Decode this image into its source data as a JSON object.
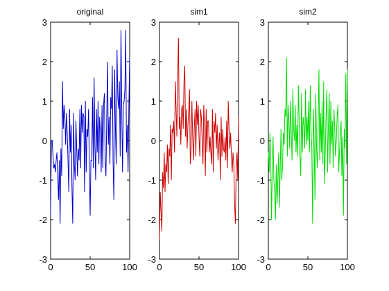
{
  "chart_data": [
    {
      "type": "line",
      "title": "original",
      "xlim": [
        0,
        100
      ],
      "ylim": [
        -3,
        3
      ],
      "xticks": [
        "0",
        "50",
        "100"
      ],
      "yticks": [
        "-3",
        "-2",
        "-1",
        "0",
        "1",
        "2",
        "3"
      ],
      "grid": false,
      "series": [
        {
          "color": "#0000cc",
          "x": [
            0,
            1,
            2,
            3,
            4,
            5,
            6,
            7,
            8,
            9,
            10,
            11,
            12,
            13,
            14,
            15,
            16,
            17,
            18,
            19,
            20,
            21,
            22,
            23,
            24,
            25,
            26,
            27,
            28,
            29,
            30,
            31,
            32,
            33,
            34,
            35,
            36,
            37,
            38,
            39,
            40,
            41,
            42,
            43,
            44,
            45,
            46,
            47,
            48,
            49,
            50,
            51,
            52,
            53,
            54,
            55,
            56,
            57,
            58,
            59,
            60,
            61,
            62,
            63,
            64,
            65,
            66,
            67,
            68,
            69,
            70,
            71,
            72,
            73,
            74,
            75,
            76,
            77,
            78,
            79,
            80,
            81,
            82,
            83,
            84,
            85,
            86,
            87,
            88,
            89,
            90,
            91,
            92,
            93,
            94,
            95,
            96,
            97,
            98,
            99,
            100
          ],
          "y": [
            -1.9,
            0.0,
            0.0,
            -0.4,
            -0.7,
            -0.6,
            -0.8,
            -0.5,
            -0.3,
            -0.9,
            -1.5,
            -0.5,
            -2.1,
            -0.2,
            -0.9,
            1.5,
            0.3,
            0.9,
            0.6,
            -0.1,
            0.7,
            0.2,
            -0.5,
            -1.3,
            0.8,
            -0.3,
            0.4,
            -1.2,
            -2.1,
            0.7,
            -0.6,
            -1.0,
            0.5,
            -0.2,
            -0.9,
            -0.2,
            -0.5,
            0.8,
            -0.7,
            0.9,
            0.2,
            0.7,
            0.6,
            -1.3,
            1.0,
            -0.8,
            0.3,
            0.1,
            0.8,
            -0.7,
            -1.9,
            -0.5,
            -0.5,
            1.1,
            -0.7,
            1.6,
            -0.1,
            -1.0,
            0.8,
            -0.3,
            1.0,
            -0.6,
            0.6,
            0.2,
            -0.8,
            0.9,
            -0.7,
            0.9,
            1.2,
            -0.5,
            -0.9,
            0.6,
            2.0,
            -0.1,
            0.6,
            -0.6,
            1.1,
            0.8,
            1.9,
            -0.5,
            -1.5,
            1.8,
            0.3,
            -0.6,
            2.3,
            1.1,
            0.8,
            1.5,
            -0.4,
            2.8,
            0.8,
            -0.8,
            0.9,
            1.0,
            1.3,
            2.8,
            -0.3,
            0.4,
            -0.8,
            0.9,
            2.1
          ]
        }
      ]
    },
    {
      "type": "line",
      "title": "sim1",
      "xlim": [
        0,
        100
      ],
      "ylim": [
        -3,
        3
      ],
      "xticks": [
        "0",
        "50",
        "100"
      ],
      "yticks": [
        "-3",
        "-2",
        "-1",
        "0",
        "1",
        "2",
        "3"
      ],
      "grid": false,
      "series": [
        {
          "color": "#cc0000",
          "x": [
            0,
            1,
            2,
            3,
            4,
            5,
            6,
            7,
            8,
            9,
            10,
            11,
            12,
            13,
            14,
            15,
            16,
            17,
            18,
            19,
            20,
            21,
            22,
            23,
            24,
            25,
            26,
            27,
            28,
            29,
            30,
            31,
            32,
            33,
            34,
            35,
            36,
            37,
            38,
            39,
            40,
            41,
            42,
            43,
            44,
            45,
            46,
            47,
            48,
            49,
            50,
            51,
            52,
            53,
            54,
            55,
            56,
            57,
            58,
            59,
            60,
            61,
            62,
            63,
            64,
            65,
            66,
            67,
            68,
            69,
            70,
            71,
            72,
            73,
            74,
            75,
            76,
            77,
            78,
            79,
            80,
            81,
            82,
            83,
            84,
            85,
            86,
            87,
            88,
            89,
            90,
            91,
            92,
            93,
            94,
            95,
            96,
            97,
            98,
            99,
            100
          ],
          "y": [
            -2.5,
            -1.3,
            -1.8,
            -2.3,
            -0.8,
            -1.2,
            -0.3,
            -1.3,
            -0.6,
            -0.8,
            -0.1,
            -1.1,
            -0.2,
            -0.4,
            0.4,
            -1.0,
            0.3,
            0.2,
            0.5,
            -0.3,
            1.5,
            0.8,
            0.1,
            1.6,
            2.6,
            0.3,
            0.6,
            -0.1,
            0.8,
            0.9,
            0.3,
            1.5,
            1.9,
            0.1,
            0.8,
            -0.2,
            0.4,
            0.8,
            1.3,
            -0.6,
            -0.2,
            1.0,
            0.1,
            -0.5,
            0.3,
            0.8,
            -0.4,
            1.0,
            0.4,
            0.9,
            0.1,
            -0.4,
            0.8,
            0.6,
            0.0,
            -0.6,
            0.9,
            0.4,
            -0.9,
            0.8,
            -0.3,
            0.5,
            0.5,
            -0.3,
            0.1,
            -0.3,
            -0.6,
            0.8,
            -0.8,
            0.5,
            0.2,
            0.7,
            -0.2,
            0.4,
            -0.5,
            -0.1,
            0.2,
            -1.0,
            0.6,
            -0.4,
            0.3,
            -0.2,
            -0.3,
            0.1,
            -0.5,
            0.5,
            -0.7,
            1.0,
            0.3,
            -0.2,
            0.2,
            -0.4,
            -0.8,
            -0.3,
            -0.6,
            -1.6,
            -2.1,
            -0.7,
            -0.3,
            -1.0,
            0.6
          ]
        }
      ]
    },
    {
      "type": "line",
      "title": "sim2",
      "xlim": [
        0,
        100
      ],
      "ylim": [
        -3,
        3
      ],
      "xticks": [
        "0",
        "50",
        "100"
      ],
      "yticks": [
        "-3",
        "-2",
        "-1",
        "0",
        "1",
        "2",
        "3"
      ],
      "grid": false,
      "series": [
        {
          "color": "#00dd00",
          "x": [
            0,
            1,
            2,
            3,
            4,
            5,
            6,
            7,
            8,
            9,
            10,
            11,
            12,
            13,
            14,
            15,
            16,
            17,
            18,
            19,
            20,
            21,
            22,
            23,
            24,
            25,
            26,
            27,
            28,
            29,
            30,
            31,
            32,
            33,
            34,
            35,
            36,
            37,
            38,
            39,
            40,
            41,
            42,
            43,
            44,
            45,
            46,
            47,
            48,
            49,
            50,
            51,
            52,
            53,
            54,
            55,
            56,
            57,
            58,
            59,
            60,
            61,
            62,
            63,
            64,
            65,
            66,
            67,
            68,
            69,
            70,
            71,
            72,
            73,
            74,
            75,
            76,
            77,
            78,
            79,
            80,
            81,
            82,
            83,
            84,
            85,
            86,
            87,
            88,
            89,
            90,
            91,
            92,
            93,
            94,
            95,
            96,
            97,
            98,
            99,
            100
          ],
          "y": [
            -0.3,
            -0.8,
            0.2,
            -0.5,
            -2.0,
            -0.6,
            0.1,
            -1.0,
            -1.3,
            -2.0,
            -0.6,
            -1.6,
            -1.0,
            -0.3,
            -1.7,
            -0.7,
            0.3,
            -1.0,
            -0.6,
            0.2,
            -0.1,
            0.8,
            0.6,
            2.1,
            -0.4,
            0.9,
            0.5,
            -0.2,
            1.0,
            0.2,
            -0.5,
            1.3,
            0.3,
            0.0,
            0.9,
            -0.3,
            0.4,
            -0.4,
            1.4,
            0.5,
            -0.4,
            -0.9,
            1.2,
            -0.3,
            0.6,
            0.4,
            -0.2,
            1.3,
            -0.1,
            0.6,
            0.0,
            1.0,
            -0.3,
            1.4,
            0.3,
            -0.2,
            -2.1,
            0.8,
            -0.1,
            -1.5,
            1.2,
            -0.2,
            -0.7,
            0.4,
            1.8,
            -0.5,
            0.7,
            -0.3,
            1.0,
            -0.6,
            1.5,
            -1.1,
            -0.3,
            0.6,
            1.3,
            -0.8,
            0.4,
            1.2,
            -0.6,
            1.0,
            -0.1,
            0.5,
            -0.7,
            0.8,
            0.3,
            -0.4,
            0.0,
            0.6,
            0.9,
            -0.8,
            -0.3,
            0.2,
            0.5,
            -0.9,
            0.1,
            -1.9,
            0.3,
            -0.2,
            1.7,
            -0.6,
            1.8
          ]
        }
      ]
    }
  ]
}
